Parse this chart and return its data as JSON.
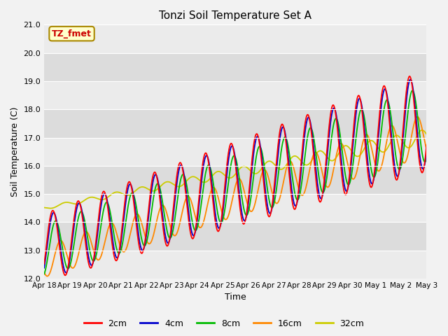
{
  "title": "Tonzi Soil Temperature Set A",
  "xlabel": "Time",
  "ylabel": "Soil Temperature (C)",
  "ylim": [
    12.0,
    21.0
  ],
  "yticks": [
    12.0,
    13.0,
    14.0,
    15.0,
    16.0,
    17.0,
    18.0,
    19.0,
    20.0,
    21.0
  ],
  "colors": {
    "2cm": "#FF0000",
    "4cm": "#0000CC",
    "8cm": "#00BB00",
    "16cm": "#FF8800",
    "32cm": "#CCCC00"
  },
  "annotation_label": "TZ_fmet",
  "annotation_color": "#CC0000",
  "annotation_bg": "#FFFFCC",
  "annotation_edge": "#AA8800",
  "bg_color": "#DCDCDC",
  "fig_bg": "#F2F2F2",
  "grid_color": "#FFFFFF",
  "xtick_labels": [
    "Apr 18",
    "Apr 19",
    "Apr 20",
    "Apr 21",
    "Apr 22",
    "Apr 23",
    "Apr 24",
    "Apr 25",
    "Apr 26",
    "Apr 27",
    "Apr 28",
    "Apr 29",
    "Apr 30",
    "May 1",
    "May 2",
    "May 3"
  ],
  "xtick_positions": [
    0,
    1,
    2,
    3,
    4,
    5,
    6,
    7,
    8,
    9,
    10,
    11,
    12,
    13,
    14,
    15
  ]
}
